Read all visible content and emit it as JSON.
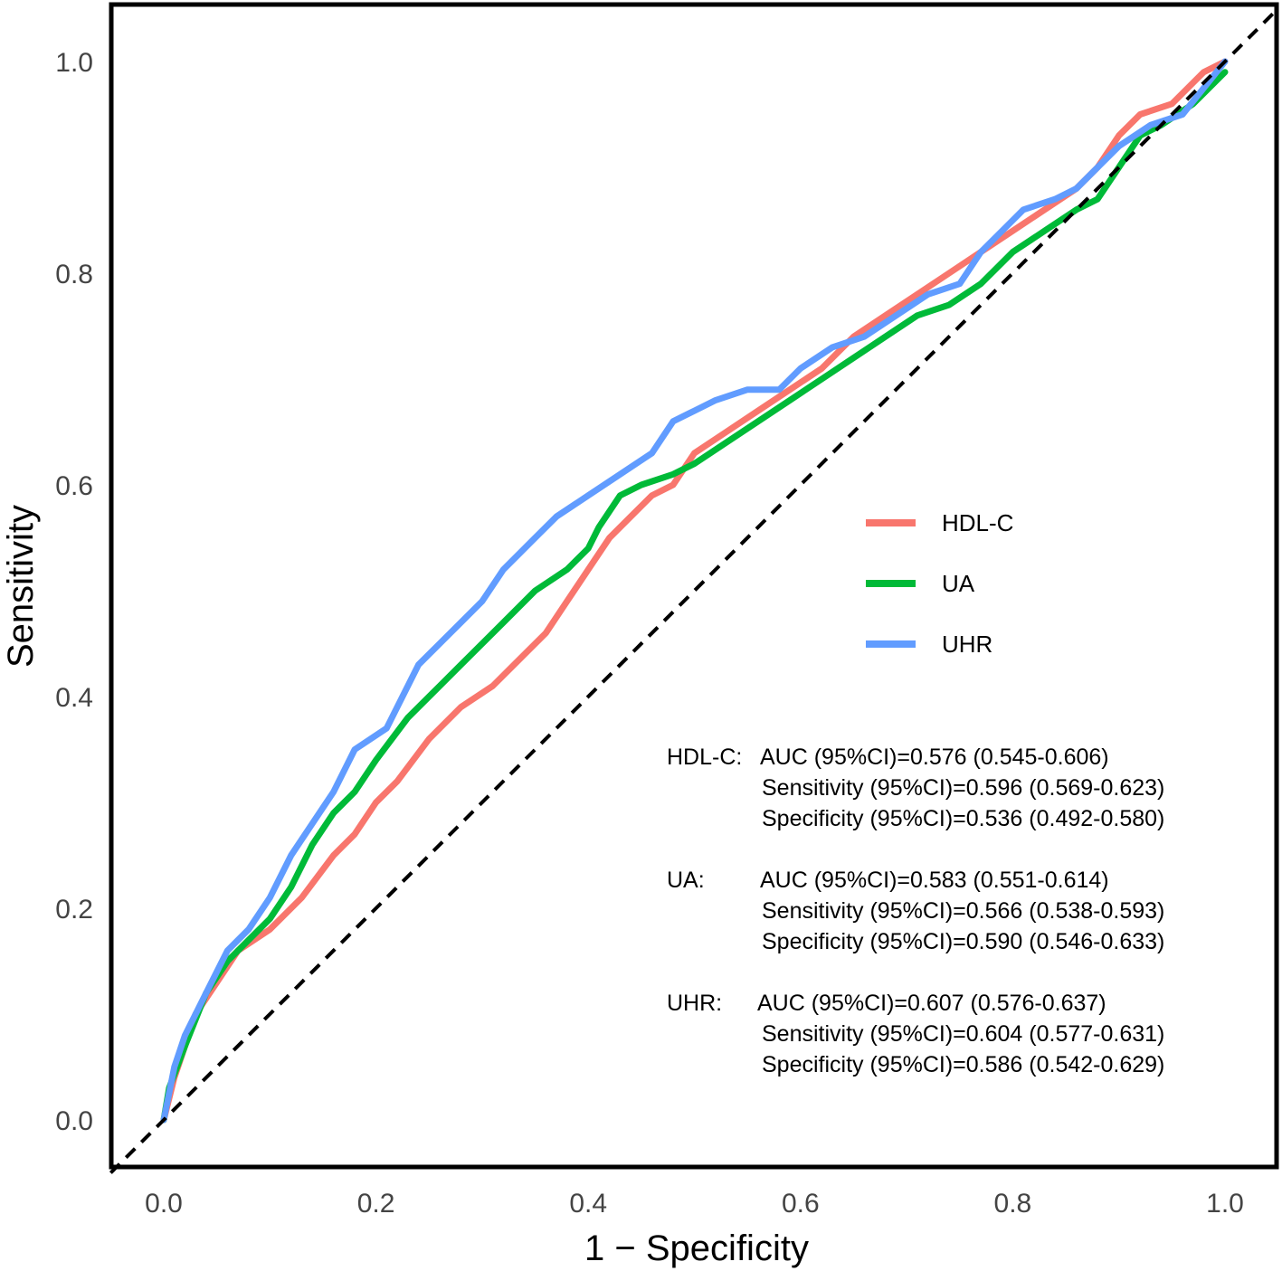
{
  "chart_data": {
    "type": "line",
    "title": "",
    "xlabel": "1 − Specificity",
    "ylabel": "Sensitivity",
    "xlim": [
      -0.05,
      1.05
    ],
    "ylim": [
      -0.05,
      1.05
    ],
    "x_ticks": [
      {
        "value": 0.0,
        "label": "0.0"
      },
      {
        "value": 0.2,
        "label": "0.2"
      },
      {
        "value": 0.4,
        "label": "0.4"
      },
      {
        "value": 0.6,
        "label": "0.6"
      },
      {
        "value": 0.8,
        "label": "0.8"
      },
      {
        "value": 1.0,
        "label": "1.0"
      }
    ],
    "y_ticks": [
      {
        "value": 0.0,
        "label": "0.0"
      },
      {
        "value": 0.2,
        "label": "0.2"
      },
      {
        "value": 0.4,
        "label": "0.4"
      },
      {
        "value": 0.6,
        "label": "0.6"
      },
      {
        "value": 0.8,
        "label": "0.8"
      },
      {
        "value": 1.0,
        "label": "1.0"
      }
    ],
    "grid": false,
    "legend_position": "right",
    "series": [
      {
        "name": "HDL-C",
        "color": "#F8766D",
        "x": [
          0,
          0.01,
          0.02,
          0.03,
          0.05,
          0.07,
          0.1,
          0.13,
          0.16,
          0.18,
          0.2,
          0.22,
          0.25,
          0.28,
          0.31,
          0.33,
          0.36,
          0.38,
          0.4,
          0.42,
          0.44,
          0.46,
          0.48,
          0.5,
          0.53,
          0.56,
          0.59,
          0.62,
          0.65,
          0.68,
          0.71,
          0.74,
          0.77,
          0.8,
          0.83,
          0.86,
          0.88,
          0.9,
          0.92,
          0.95,
          0.98,
          1.0
        ],
        "y": [
          0,
          0.04,
          0.07,
          0.1,
          0.13,
          0.16,
          0.18,
          0.21,
          0.25,
          0.27,
          0.3,
          0.32,
          0.36,
          0.39,
          0.41,
          0.43,
          0.46,
          0.49,
          0.52,
          0.55,
          0.57,
          0.59,
          0.6,
          0.63,
          0.65,
          0.67,
          0.69,
          0.71,
          0.74,
          0.76,
          0.78,
          0.8,
          0.82,
          0.84,
          0.86,
          0.88,
          0.9,
          0.93,
          0.95,
          0.96,
          0.99,
          1.0
        ]
      },
      {
        "name": "UA",
        "color": "#00BA38",
        "x": [
          0,
          0.005,
          0.02,
          0.04,
          0.06,
          0.08,
          0.1,
          0.12,
          0.14,
          0.16,
          0.18,
          0.2,
          0.23,
          0.26,
          0.29,
          0.32,
          0.35,
          0.38,
          0.4,
          0.41,
          0.43,
          0.45,
          0.48,
          0.5,
          0.53,
          0.56,
          0.59,
          0.62,
          0.65,
          0.68,
          0.71,
          0.74,
          0.77,
          0.8,
          0.83,
          0.86,
          0.88,
          0.9,
          0.92,
          0.94,
          0.97,
          1.0
        ],
        "y": [
          0,
          0.03,
          0.07,
          0.12,
          0.15,
          0.17,
          0.19,
          0.22,
          0.26,
          0.29,
          0.31,
          0.34,
          0.38,
          0.41,
          0.44,
          0.47,
          0.5,
          0.52,
          0.54,
          0.56,
          0.59,
          0.6,
          0.61,
          0.62,
          0.64,
          0.66,
          0.68,
          0.7,
          0.72,
          0.74,
          0.76,
          0.77,
          0.79,
          0.82,
          0.84,
          0.86,
          0.87,
          0.9,
          0.93,
          0.94,
          0.96,
          0.99
        ]
      },
      {
        "name": "UHR",
        "color": "#619CFF",
        "x": [
          0,
          0.01,
          0.02,
          0.04,
          0.06,
          0.08,
          0.1,
          0.12,
          0.14,
          0.16,
          0.18,
          0.21,
          0.24,
          0.27,
          0.3,
          0.32,
          0.35,
          0.37,
          0.4,
          0.43,
          0.46,
          0.48,
          0.5,
          0.52,
          0.55,
          0.58,
          0.6,
          0.63,
          0.66,
          0.69,
          0.72,
          0.75,
          0.77,
          0.79,
          0.81,
          0.84,
          0.86,
          0.88,
          0.9,
          0.93,
          0.96,
          1.0
        ],
        "y": [
          0,
          0.05,
          0.08,
          0.12,
          0.16,
          0.18,
          0.21,
          0.25,
          0.28,
          0.31,
          0.35,
          0.37,
          0.43,
          0.46,
          0.49,
          0.52,
          0.55,
          0.57,
          0.59,
          0.61,
          0.63,
          0.66,
          0.67,
          0.68,
          0.69,
          0.69,
          0.71,
          0.73,
          0.74,
          0.76,
          0.78,
          0.79,
          0.82,
          0.84,
          0.86,
          0.87,
          0.88,
          0.9,
          0.92,
          0.94,
          0.95,
          1.0
        ]
      }
    ],
    "reference_line": {
      "x": [
        -0.05,
        1.05
      ],
      "y": [
        -0.05,
        1.05
      ],
      "style": "dashed",
      "color": "#000000"
    },
    "annotations": {
      "HDL-C": {
        "label": "HDL-C:",
        "auc": "AUC (95%CI)=0.576  (0.545-0.606)",
        "sensitivity": "Sensitivity (95%CI)=0.596  (0.569-0.623)",
        "specificity": "Specificity (95%CI)=0.536  (0.492-0.580)"
      },
      "UA": {
        "label": "UA:",
        "auc": "AUC (95%CI)=0.583  (0.551-0.614)",
        "sensitivity": "Sensitivity (95%CI)=0.566  (0.538-0.593)",
        "specificity": "Specificity (95%CI)=0.590  (0.546-0.633)"
      },
      "UHR": {
        "label": "UHR:",
        "auc": "AUC (95%CI)=0.607  (0.576-0.637)",
        "sensitivity": "Sensitivity (95%CI)=0.604  (0.577-0.631)",
        "specificity": "Specificity (95%CI)=0.586  (0.542-0.629)"
      }
    }
  }
}
